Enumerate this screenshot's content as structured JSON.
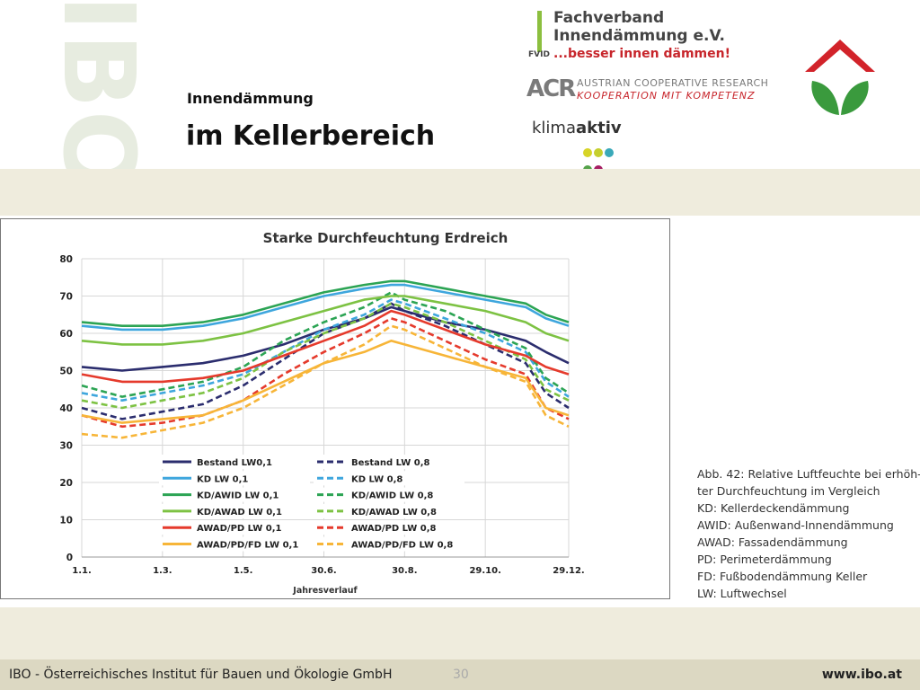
{
  "slide": {
    "watermark": "IBO",
    "subtitle": "Innendämmung",
    "title": "im Kellerbereich"
  },
  "logos": {
    "fachverband_line1": "Fachverband",
    "fachverband_line2": "Innendämmung e.V.",
    "fachverband_line3": "...besser innen dämmen!",
    "fachverband_abbr": "FVID",
    "acr_mark": "ACR",
    "acr_line1": "AUSTRIAN COOPERATIVE RESEARCH",
    "acr_line2": "KOOPERATION MIT KOMPETENZ",
    "klima_part1": "klima",
    "klima_part2": "aktiv"
  },
  "caption": {
    "lines": [
      "Abb. 42: Relative Luftfeuchte bei erhöh-",
      "ter Durchfeuchtung im Vergleich",
      "KD: Kellerdeckendämmung",
      "AWID: Außenwand-Innendämmung",
      "AWAD: Fassadendämmung",
      "PD: Perimeterdämmung",
      "FD: Fußbodendämmung Keller",
      "LW: Luftwechsel"
    ]
  },
  "footer": {
    "left": "IBO - Österreichisches Institut für Bauen und Ökologie GmbH",
    "page": "30",
    "right": "www.ibo.at"
  },
  "colors": {
    "navy": "#2b2d6e",
    "lightblue": "#3ea6dd",
    "green": "#2ca454",
    "lightgreen": "#7dc243",
    "red": "#e53a2c",
    "orange": "#f7b538"
  },
  "chart_data": {
    "type": "line",
    "title": "Starke Durchfeuchtung Erdreich",
    "xlabel": "Jahresverlauf",
    "ylabel": "",
    "ylim": [
      0,
      80
    ],
    "yticks": [
      0,
      10,
      20,
      30,
      40,
      50,
      60,
      70,
      80
    ],
    "xtick_labels": [
      "1.1.",
      "1.3.",
      "1.5.",
      "30.6.",
      "30.8.",
      "29.10.",
      "29.12."
    ],
    "xtick_days": [
      0,
      60,
      120,
      180,
      240,
      300,
      362
    ],
    "grid": true,
    "legend_position": "bottom-center inside",
    "x_days": [
      0,
      30,
      60,
      90,
      120,
      150,
      180,
      210,
      230,
      240,
      270,
      300,
      330,
      345,
      362
    ],
    "series": [
      {
        "name": "Bestand LW0,1",
        "color": "#2b2d6e",
        "dashed": false,
        "values": [
          51,
          50,
          51,
          52,
          54,
          57,
          61,
          64,
          67,
          66,
          63,
          61,
          58,
          55,
          52
        ]
      },
      {
        "name": "Bestand LW 0,8",
        "color": "#2b2d6e",
        "dashed": true,
        "values": [
          40,
          37,
          39,
          41,
          46,
          53,
          60,
          64,
          68,
          66,
          62,
          57,
          52,
          44,
          40
        ]
      },
      {
        "name": "KD LW 0,1",
        "color": "#3ea6dd",
        "dashed": false,
        "values": [
          62,
          61,
          61,
          62,
          64,
          67,
          70,
          72,
          73,
          73,
          71,
          69,
          67,
          64,
          62
        ]
      },
      {
        "name": "KD LW 0,8",
        "color": "#3ea6dd",
        "dashed": true,
        "values": [
          44,
          42,
          44,
          46,
          49,
          55,
          61,
          65,
          69,
          68,
          64,
          60,
          55,
          47,
          43
        ]
      },
      {
        "name": "KD/AWID LW 0,1",
        "color": "#2ca454",
        "dashed": false,
        "values": [
          63,
          62,
          62,
          63,
          65,
          68,
          71,
          73,
          74,
          74,
          72,
          70,
          68,
          65,
          63
        ]
      },
      {
        "name": "KD/AWID LW 0,8",
        "color": "#2ca454",
        "dashed": true,
        "values": [
          46,
          43,
          45,
          47,
          51,
          58,
          63,
          67,
          71,
          69,
          66,
          61,
          56,
          48,
          44
        ]
      },
      {
        "name": "KD/AWAD LW 0,1",
        "color": "#7dc243",
        "dashed": false,
        "values": [
          58,
          57,
          57,
          58,
          60,
          63,
          66,
          69,
          70,
          70,
          68,
          66,
          63,
          60,
          58
        ]
      },
      {
        "name": "KD/AWAD LW 0,8",
        "color": "#7dc243",
        "dashed": true,
        "values": [
          42,
          40,
          42,
          44,
          48,
          55,
          60,
          64,
          68,
          67,
          63,
          58,
          53,
          45,
          42
        ]
      },
      {
        "name": "AWAD/PD LW 0,1",
        "color": "#e53a2c",
        "dashed": false,
        "values": [
          49,
          47,
          47,
          48,
          50,
          54,
          58,
          62,
          66,
          65,
          61,
          57,
          54,
          51,
          49
        ]
      },
      {
        "name": "AWAD/PD LW 0,8",
        "color": "#e53a2c",
        "dashed": true,
        "values": [
          38,
          35,
          36,
          38,
          42,
          49,
          55,
          60,
          64,
          63,
          58,
          53,
          49,
          40,
          37
        ]
      },
      {
        "name": "AWAD/PD/FD LW 0,1",
        "color": "#f7b538",
        "dashed": false,
        "values": [
          38,
          36,
          37,
          38,
          42,
          47,
          52,
          55,
          58,
          57,
          54,
          51,
          48,
          40,
          38
        ]
      },
      {
        "name": "AWAD/PD/FD LW 0,8",
        "color": "#f7b538",
        "dashed": true,
        "values": [
          33,
          32,
          34,
          36,
          40,
          46,
          52,
          57,
          62,
          61,
          56,
          51,
          47,
          38,
          35
        ]
      }
    ]
  }
}
